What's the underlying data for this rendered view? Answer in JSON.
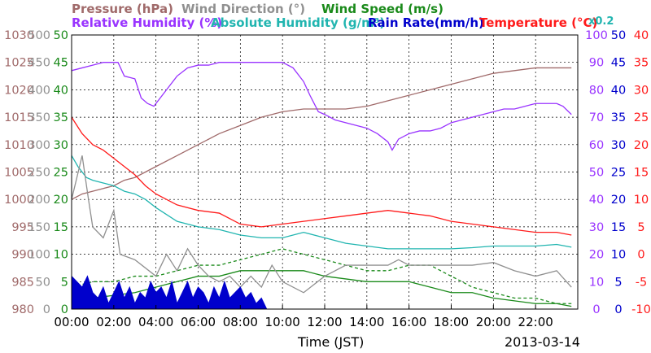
{
  "chart_data": {
    "type": "line",
    "date": "2013-03-14",
    "xlabel": "Time (JST)",
    "x_ticks": [
      "00:00",
      "02:00",
      "04:00",
      "06:00",
      "08:00",
      "10:00",
      "12:00",
      "14:00",
      "16:00",
      "18:00",
      "20:00",
      "22:00"
    ],
    "xlim": [
      0,
      24
    ],
    "grid": true,
    "legend_placement": "top",
    "legend": {
      "pressure": {
        "text": "Pressure (hPa)",
        "color": "#a06a6a"
      },
      "wind_dir": {
        "text": "Wind Direction (°)",
        "color": "#909090"
      },
      "wind_speed": {
        "text": "Wind Speed (m/s)",
        "color": "#1a8a1a"
      },
      "rh": {
        "text": "Relative Humidity (%)",
        "color": "#9933ff"
      },
      "ah": {
        "text": "Absolute Humidity (g/m³)",
        "color": "#21b5b0"
      },
      "rain": {
        "text": "Rain Rate(mm/h)",
        "color": "#0000cc"
      },
      "temp": {
        "text": "Temperature (°C)",
        "color": "#ff1a1a"
      },
      "rain_factor": {
        "text": "x0.2",
        "color": "#21b5b0"
      }
    },
    "axes": {
      "pressure": {
        "ticks": [
          "1030",
          "1025",
          "1020",
          "1015",
          "1010",
          "1005",
          "1000",
          "995",
          "990",
          "985",
          "980"
        ],
        "range": [
          980,
          1030
        ],
        "color": "#a06a6a"
      },
      "wind_dir": {
        "ticks": [
          "500",
          "450",
          "400",
          "350",
          "300",
          "250",
          "200",
          "150",
          "100",
          "50",
          "0"
        ],
        "range": [
          0,
          500
        ],
        "color": "#909090"
      },
      "wind_speed": {
        "ticks": [
          "50",
          "45",
          "40",
          "35",
          "30",
          "25",
          "20",
          "15",
          "10",
          "5",
          "0"
        ],
        "range": [
          0,
          50
        ],
        "color": "#1a8a1a"
      },
      "rh": {
        "ticks": [
          "100",
          "90",
          "80",
          "70",
          "60",
          "50",
          "40",
          "30",
          "20",
          "10",
          "0"
        ],
        "range": [
          0,
          100
        ],
        "color": "#9933ff"
      },
      "rain": {
        "ticks": [
          "50",
          "45",
          "40",
          "35",
          "30",
          "25",
          "20",
          "15",
          "10",
          "5",
          "0"
        ],
        "range": [
          0,
          50
        ],
        "color": "#0000cc"
      },
      "temp": {
        "ticks": [
          "40",
          "35",
          "30",
          "25",
          "20",
          "15",
          "10",
          "5",
          "0",
          "-5",
          "-10"
        ],
        "range": [
          -10,
          40
        ],
        "color": "#ff1a1a"
      }
    },
    "series": [
      {
        "name": "Pressure (hPa)",
        "axis": "pressure",
        "x": [
          0,
          0.5,
          1,
          1.5,
          2,
          2.5,
          3,
          4,
          5,
          6,
          7,
          8,
          9,
          10,
          11,
          12,
          13,
          14,
          15,
          16,
          17,
          18,
          19,
          20,
          21,
          22,
          23,
          23.7
        ],
        "y": [
          1000,
          1001,
          1001.5,
          1002,
          1002.5,
          1003.5,
          1004,
          1006,
          1008,
          1010,
          1012,
          1013.5,
          1015,
          1016,
          1016.5,
          1016.5,
          1016.5,
          1017,
          1018,
          1019,
          1020,
          1021,
          1022,
          1023,
          1023.5,
          1024,
          1024,
          1024
        ]
      },
      {
        "name": "Relative Humidity (%)",
        "axis": "rh",
        "x": [
          0,
          0.5,
          1,
          1.5,
          2,
          2.2,
          2.5,
          3,
          3.3,
          3.6,
          3.9,
          4.2,
          4.5,
          5,
          5.5,
          6,
          6.5,
          7,
          7.5,
          8,
          8.5,
          9,
          9.5,
          10,
          10.5,
          11,
          11.3,
          11.7,
          12,
          12.5,
          13,
          13.5,
          14,
          14.5,
          15,
          15.2,
          15.5,
          16,
          16.5,
          17,
          17.5,
          18,
          18.5,
          19,
          19.5,
          20,
          20.5,
          21,
          21.5,
          22,
          22.5,
          23,
          23.3,
          23.7
        ],
        "y": [
          87,
          88,
          89,
          90,
          90,
          90,
          85,
          84,
          77,
          75,
          74,
          77,
          80,
          85,
          88,
          89,
          89,
          90,
          90,
          90,
          90,
          90,
          90,
          90,
          88,
          83,
          78,
          72,
          71,
          69,
          68,
          67,
          66,
          64,
          61,
          58,
          62,
          64,
          65,
          65,
          66,
          68,
          69,
          70,
          71,
          72,
          73,
          73,
          74,
          75,
          75,
          75,
          74,
          71
        ]
      },
      {
        "name": "Temperature (°C)",
        "axis": "temp",
        "x": [
          0,
          0.5,
          1,
          1.5,
          2,
          2.5,
          3,
          3.5,
          4,
          5,
          6,
          7,
          8,
          9,
          10,
          11,
          12,
          13,
          14,
          15,
          16,
          17,
          18,
          19,
          20,
          21,
          22,
          23,
          23.7
        ],
        "y": [
          25,
          22,
          20,
          19,
          17.5,
          16,
          14.5,
          12.5,
          11,
          9,
          8,
          7.5,
          5.5,
          5,
          5.5,
          6,
          6.5,
          7,
          7.5,
          8,
          7.5,
          7,
          6,
          5.5,
          5,
          4.5,
          4,
          4,
          3.5
        ]
      },
      {
        "name": "Absolute Humidity (g/m³)",
        "axis": "ah",
        "x": [
          0,
          0.3,
          0.7,
          1,
          1.5,
          2,
          2.5,
          3,
          3.5,
          4,
          5,
          6,
          7,
          8,
          9,
          10,
          11,
          12,
          13,
          14,
          15,
          16,
          17,
          18,
          19,
          20,
          21,
          22,
          23,
          23.7
        ],
        "y": [
          28,
          26,
          24,
          23.5,
          23,
          22.5,
          21.5,
          21,
          20,
          18.5,
          16,
          15,
          14.5,
          13.5,
          13,
          13,
          14,
          13,
          12,
          11.5,
          11,
          11,
          11,
          11,
          11.2,
          11.5,
          11.5,
          11.5,
          11.8,
          11.3
        ]
      },
      {
        "name": "Wind Speed (m/s)",
        "axis": "wind_speed",
        "x": [
          0,
          1,
          2,
          3,
          4,
          5,
          6,
          7,
          8,
          9,
          10,
          11,
          12,
          13,
          14,
          15,
          16,
          17,
          18,
          19,
          20,
          21,
          22,
          23,
          23.7
        ],
        "y": [
          1,
          2,
          2.5,
          3,
          4,
          5,
          6,
          6,
          7,
          7,
          7,
          7,
          6,
          5.5,
          5,
          5,
          5,
          4,
          3,
          3,
          2,
          1.5,
          1,
          1,
          0.5
        ]
      },
      {
        "name": "Wind Speed gust (m/s)",
        "axis": "wind_speed",
        "x": [
          0,
          1,
          2,
          3,
          4,
          5,
          6,
          7,
          8,
          9,
          10,
          11,
          12,
          13,
          14,
          15,
          16,
          17,
          18,
          19,
          20,
          21,
          22,
          23,
          23.7
        ],
        "y": [
          4,
          5,
          5,
          6,
          6,
          7,
          8,
          8,
          9,
          10,
          11,
          10,
          9,
          8,
          7,
          7,
          8,
          8,
          6,
          4,
          3,
          2,
          2,
          1,
          1
        ]
      },
      {
        "name": "Wind Direction (°)",
        "axis": "wind_dir",
        "x": [
          0,
          0.5,
          0.8,
          1,
          1.5,
          2,
          2.3,
          3,
          4,
          4.5,
          5,
          5.5,
          6,
          6.5,
          7,
          7.5,
          8,
          8.5,
          9,
          9.5,
          10,
          11,
          12,
          13,
          14,
          15,
          15.5,
          16,
          17,
          18,
          19,
          20,
          21,
          22,
          23,
          23.7
        ],
        "y": [
          200,
          280,
          200,
          150,
          130,
          180,
          100,
          90,
          60,
          100,
          70,
          110,
          80,
          60,
          50,
          60,
          40,
          60,
          40,
          80,
          50,
          30,
          60,
          80,
          80,
          80,
          90,
          80,
          80,
          80,
          80,
          85,
          70,
          60,
          70,
          40
        ]
      },
      {
        "name": "Rain Rate(mm/h)",
        "axis": "rain",
        "x": [
          0,
          0.25,
          0.5,
          0.75,
          1,
          1.25,
          1.5,
          1.75,
          2,
          2.25,
          2.5,
          2.75,
          3,
          3.25,
          3.5,
          3.75,
          4,
          4.25,
          4.5,
          4.75,
          5,
          5.25,
          5.5,
          5.75,
          6,
          6.25,
          6.5,
          6.75,
          7,
          7.25,
          7.5,
          7.75,
          8,
          8.25,
          8.5,
          8.75,
          9,
          9.25
        ],
        "y": [
          6,
          5,
          4,
          6,
          3,
          2,
          4,
          1,
          3,
          5,
          2,
          4,
          1,
          3,
          2,
          5,
          3,
          4,
          2,
          5,
          1,
          3,
          5,
          2,
          4,
          3,
          1,
          4,
          2,
          5,
          2,
          3,
          4,
          2,
          3,
          1,
          2,
          0
        ]
      }
    ]
  }
}
